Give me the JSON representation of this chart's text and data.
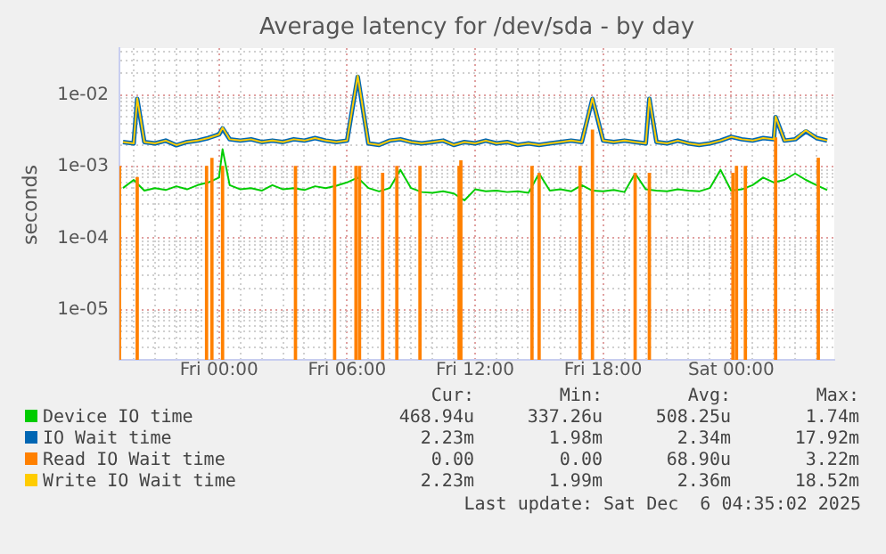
{
  "chart_data": {
    "type": "line",
    "title": "Average latency for /dev/sda - by day",
    "ylabel": "seconds",
    "log": "y",
    "grid": true,
    "legend": "bottom",
    "marker": "none",
    "line_style": "solid",
    "xlim": [
      "2025-12-04T19:20",
      "2025-12-06T04:50"
    ],
    "xticks": [
      {
        "value": "2025-12-04T20:00",
        "label": null
      },
      {
        "value": "2025-12-04T21:00",
        "label": null
      },
      {
        "value": "2025-12-04T22:00",
        "label": null
      },
      {
        "value": "2025-12-04T23:00",
        "label": null
      },
      {
        "value": "2025-12-05T00:00",
        "label": "Fri 00:00"
      },
      {
        "value": "2025-12-05T01:00",
        "label": null
      },
      {
        "value": "2025-12-05T02:00",
        "label": null
      },
      {
        "value": "2025-12-05T03:00",
        "label": null
      },
      {
        "value": "2025-12-05T04:00",
        "label": null
      },
      {
        "value": "2025-12-05T05:00",
        "label": null
      },
      {
        "value": "2025-12-05T06:00",
        "label": "Fri 06:00"
      },
      {
        "value": "2025-12-05T07:00",
        "label": null
      },
      {
        "value": "2025-12-05T08:00",
        "label": null
      },
      {
        "value": "2025-12-05T09:00",
        "label": null
      },
      {
        "value": "2025-12-05T10:00",
        "label": null
      },
      {
        "value": "2025-12-05T11:00",
        "label": null
      },
      {
        "value": "2025-12-05T12:00",
        "label": "Fri 12:00"
      },
      {
        "value": "2025-12-05T13:00",
        "label": null
      },
      {
        "value": "2025-12-05T14:00",
        "label": null
      },
      {
        "value": "2025-12-05T15:00",
        "label": null
      },
      {
        "value": "2025-12-05T16:00",
        "label": null
      },
      {
        "value": "2025-12-05T17:00",
        "label": null
      },
      {
        "value": "2025-12-05T18:00",
        "label": "Fri 18:00"
      },
      {
        "value": "2025-12-05T19:00",
        "label": null
      },
      {
        "value": "2025-12-05T20:00",
        "label": null
      },
      {
        "value": "2025-12-05T21:00",
        "label": null
      },
      {
        "value": "2025-12-05T22:00",
        "label": null
      },
      {
        "value": "2025-12-05T23:00",
        "label": null
      },
      {
        "value": "2025-12-06T00:00",
        "label": "Sat 00:00"
      },
      {
        "value": "2025-12-06T01:00",
        "label": null
      },
      {
        "value": "2025-12-06T02:00",
        "label": null
      },
      {
        "value": "2025-12-06T03:00",
        "label": null
      },
      {
        "value": "2025-12-06T04:00",
        "label": null
      }
    ],
    "ylim": [
      2e-06,
      0.045
    ],
    "yticks": [
      {
        "value": 3e-06,
        "label": null
      },
      {
        "value": 4e-06,
        "label": null
      },
      {
        "value": 5e-06,
        "label": null
      },
      {
        "value": 6e-06,
        "label": null
      },
      {
        "value": 7e-06,
        "label": null
      },
      {
        "value": 8e-06,
        "label": null
      },
      {
        "value": 9e-06,
        "label": null
      },
      {
        "value": 1e-05,
        "label": "1e-05"
      },
      {
        "value": 2e-05,
        "label": null
      },
      {
        "value": 3e-05,
        "label": null
      },
      {
        "value": 4e-05,
        "label": null
      },
      {
        "value": 5e-05,
        "label": null
      },
      {
        "value": 6e-05,
        "label": null
      },
      {
        "value": 7e-05,
        "label": null
      },
      {
        "value": 8e-05,
        "label": null
      },
      {
        "value": 9e-05,
        "label": null
      },
      {
        "value": 0.0001,
        "label": "1e-04"
      },
      {
        "value": 0.0002,
        "label": null
      },
      {
        "value": 0.0003,
        "label": null
      },
      {
        "value": 0.0004,
        "label": null
      },
      {
        "value": 0.0005,
        "label": null
      },
      {
        "value": 0.0006,
        "label": null
      },
      {
        "value": 0.0007,
        "label": null
      },
      {
        "value": 0.0008,
        "label": null
      },
      {
        "value": 0.0009,
        "label": null
      },
      {
        "value": 0.001,
        "label": "1e-03"
      },
      {
        "value": 0.002,
        "label": null
      },
      {
        "value": 0.003,
        "label": null
      },
      {
        "value": 0.004,
        "label": null
      },
      {
        "value": 0.005,
        "label": null
      },
      {
        "value": 0.006,
        "label": null
      },
      {
        "value": 0.007,
        "label": null
      },
      {
        "value": 0.008,
        "label": null
      },
      {
        "value": 0.009,
        "label": null
      },
      {
        "value": 0.01,
        "label": "1e-02"
      },
      {
        "value": 0.02,
        "label": null
      },
      {
        "value": 0.03,
        "label": null
      },
      {
        "value": 0.04,
        "label": null
      }
    ],
    "series": [
      {
        "name": "Device IO time",
        "color": "#00cc00",
        "x": [
          "2025-12-04T19:30",
          "2025-12-04T20:00",
          "2025-12-04T20:30",
          "2025-12-04T21:00",
          "2025-12-04T21:30",
          "2025-12-04T22:00",
          "2025-12-04T22:30",
          "2025-12-04T23:00",
          "2025-12-04T23:30",
          "2025-12-05T00:00",
          "2025-12-05T00:10",
          "2025-12-05T00:30",
          "2025-12-05T01:00",
          "2025-12-05T01:30",
          "2025-12-05T02:00",
          "2025-12-05T02:30",
          "2025-12-05T03:00",
          "2025-12-05T03:30",
          "2025-12-05T04:00",
          "2025-12-05T04:30",
          "2025-12-05T05:00",
          "2025-12-05T05:30",
          "2025-12-05T06:00",
          "2025-12-05T06:30",
          "2025-12-05T07:00",
          "2025-12-05T07:30",
          "2025-12-05T08:00",
          "2025-12-05T08:30",
          "2025-12-05T09:00",
          "2025-12-05T09:30",
          "2025-12-05T10:00",
          "2025-12-05T10:30",
          "2025-12-05T11:00",
          "2025-12-05T11:30",
          "2025-12-05T12:00",
          "2025-12-05T12:30",
          "2025-12-05T13:00",
          "2025-12-05T13:30",
          "2025-12-05T14:00",
          "2025-12-05T14:30",
          "2025-12-05T15:00",
          "2025-12-05T15:30",
          "2025-12-05T16:00",
          "2025-12-05T16:30",
          "2025-12-05T17:00",
          "2025-12-05T17:30",
          "2025-12-05T18:00",
          "2025-12-05T18:30",
          "2025-12-05T19:00",
          "2025-12-05T19:30",
          "2025-12-05T20:00",
          "2025-12-05T20:30",
          "2025-12-05T21:00",
          "2025-12-05T21:30",
          "2025-12-05T22:00",
          "2025-12-05T22:30",
          "2025-12-05T23:00",
          "2025-12-05T23:30",
          "2025-12-06T00:00",
          "2025-12-06T00:30",
          "2025-12-06T01:00",
          "2025-12-06T01:30",
          "2025-12-06T02:00",
          "2025-12-06T02:30",
          "2025-12-06T03:00",
          "2025-12-06T03:30",
          "2025-12-06T04:00",
          "2025-12-06T04:30"
        ],
        "values": [
          0.0005,
          0.00065,
          0.00046,
          0.0005,
          0.00047,
          0.00053,
          0.00048,
          0.00055,
          0.0006,
          0.0007,
          0.00174,
          0.00055,
          0.00048,
          0.0005,
          0.00046,
          0.00055,
          0.00048,
          0.0005,
          0.00047,
          0.00053,
          0.0005,
          0.00054,
          0.0006,
          0.0007,
          0.0005,
          0.00045,
          0.0005,
          0.0009,
          0.0005,
          0.00044,
          0.00043,
          0.00045,
          0.00042,
          0.000337,
          0.00048,
          0.00045,
          0.00046,
          0.00044,
          0.00045,
          0.00043,
          0.0008,
          0.00046,
          0.00048,
          0.00045,
          0.00055,
          0.00046,
          0.00045,
          0.00047,
          0.00044,
          0.0008,
          0.00048,
          0.00046,
          0.00045,
          0.00048,
          0.00046,
          0.00045,
          0.0005,
          0.0009,
          0.00046,
          0.00048,
          0.00055,
          0.0007,
          0.0006,
          0.00065,
          0.0008,
          0.00065,
          0.00055,
          0.00047
        ]
      },
      {
        "name": "IO Wait time",
        "color": "#0066b3",
        "x": [
          "2025-12-04T19:30",
          "2025-12-04T20:00",
          "2025-12-04T20:10",
          "2025-12-04T20:30",
          "2025-12-04T21:00",
          "2025-12-04T21:30",
          "2025-12-04T22:00",
          "2025-12-04T22:30",
          "2025-12-04T23:00",
          "2025-12-04T23:30",
          "2025-12-05T00:00",
          "2025-12-05T00:10",
          "2025-12-05T00:30",
          "2025-12-05T01:00",
          "2025-12-05T01:30",
          "2025-12-05T02:00",
          "2025-12-05T02:30",
          "2025-12-05T03:00",
          "2025-12-05T03:30",
          "2025-12-05T04:00",
          "2025-12-05T04:30",
          "2025-12-05T05:00",
          "2025-12-05T05:30",
          "2025-12-05T06:00",
          "2025-12-05T06:30",
          "2025-12-05T07:00",
          "2025-12-05T07:30",
          "2025-12-05T08:00",
          "2025-12-05T08:30",
          "2025-12-05T09:00",
          "2025-12-05T09:30",
          "2025-12-05T10:00",
          "2025-12-05T10:30",
          "2025-12-05T11:00",
          "2025-12-05T11:30",
          "2025-12-05T12:00",
          "2025-12-05T12:30",
          "2025-12-05T13:00",
          "2025-12-05T13:30",
          "2025-12-05T14:00",
          "2025-12-05T14:30",
          "2025-12-05T15:00",
          "2025-12-05T15:30",
          "2025-12-05T16:00",
          "2025-12-05T16:30",
          "2025-12-05T17:00",
          "2025-12-05T17:30",
          "2025-12-05T18:00",
          "2025-12-05T18:30",
          "2025-12-05T19:00",
          "2025-12-05T19:30",
          "2025-12-05T20:00",
          "2025-12-05T20:10",
          "2025-12-05T20:30",
          "2025-12-05T21:00",
          "2025-12-05T21:30",
          "2025-12-05T22:00",
          "2025-12-05T22:30",
          "2025-12-05T23:00",
          "2025-12-05T23:30",
          "2025-12-06T00:00",
          "2025-12-06T00:30",
          "2025-12-06T01:00",
          "2025-12-06T01:30",
          "2025-12-06T02:00",
          "2025-12-06T02:05",
          "2025-12-06T02:30",
          "2025-12-06T03:00",
          "2025-12-06T03:30",
          "2025-12-06T04:00",
          "2025-12-06T04:30"
        ],
        "values": [
          0.0022,
          0.0021,
          0.0088,
          0.0022,
          0.0021,
          0.0023,
          0.00198,
          0.0022,
          0.0023,
          0.0025,
          0.0028,
          0.0034,
          0.0024,
          0.0023,
          0.0024,
          0.0022,
          0.0023,
          0.0022,
          0.0024,
          0.0023,
          0.0025,
          0.0023,
          0.0022,
          0.0023,
          0.01792,
          0.0021,
          0.002,
          0.0023,
          0.0024,
          0.0022,
          0.0021,
          0.0022,
          0.0023,
          0.002,
          0.0022,
          0.0021,
          0.0023,
          0.0021,
          0.0022,
          0.002,
          0.0021,
          0.002,
          0.0021,
          0.0022,
          0.0023,
          0.0022,
          0.0088,
          0.0023,
          0.0022,
          0.0023,
          0.0022,
          0.0021,
          0.0088,
          0.0022,
          0.0021,
          0.0023,
          0.0021,
          0.002,
          0.0021,
          0.0023,
          0.0026,
          0.0024,
          0.0023,
          0.0025,
          0.0024,
          0.0049,
          0.0023,
          0.0024,
          0.0031,
          0.0025,
          0.0023
        ]
      },
      {
        "name": "Read IO Wait time",
        "color": "#ff8000",
        "type": "bar",
        "x": [
          "2025-12-04T19:20",
          "2025-12-04T20:10",
          "2025-12-04T23:25",
          "2025-12-04T23:40",
          "2025-12-05T00:10",
          "2025-12-05T03:35",
          "2025-12-05T05:25",
          "2025-12-05T06:25",
          "2025-12-05T06:35",
          "2025-12-05T07:40",
          "2025-12-05T08:20",
          "2025-12-05T09:25",
          "2025-12-05T11:15",
          "2025-12-05T11:20",
          "2025-12-05T14:40",
          "2025-12-05T15:00",
          "2025-12-05T16:55",
          "2025-12-05T17:30",
          "2025-12-05T19:30",
          "2025-12-05T20:10",
          "2025-12-06T00:05",
          "2025-12-06T00:15",
          "2025-12-06T00:40",
          "2025-12-06T02:05",
          "2025-12-06T04:05"
        ],
        "values": [
          0.001,
          0.0007,
          0.001,
          0.0013,
          0.001,
          0.001,
          0.001,
          0.001,
          0.001,
          0.0008,
          0.001,
          0.001,
          0.001,
          0.0012,
          0.001,
          0.0008,
          0.001,
          0.00322,
          0.0008,
          0.0008,
          0.0008,
          0.001,
          0.001,
          0.0025,
          0.0013
        ]
      },
      {
        "name": "Write IO Wait time",
        "color": "#ffcc00",
        "x": [
          "2025-12-04T19:30",
          "2025-12-04T20:00",
          "2025-12-04T20:10",
          "2025-12-04T20:30",
          "2025-12-04T21:00",
          "2025-12-04T21:30",
          "2025-12-04T22:00",
          "2025-12-04T22:30",
          "2025-12-04T23:00",
          "2025-12-04T23:30",
          "2025-12-05T00:00",
          "2025-12-05T00:10",
          "2025-12-05T00:30",
          "2025-12-05T01:00",
          "2025-12-05T01:30",
          "2025-12-05T02:00",
          "2025-12-05T02:30",
          "2025-12-05T03:00",
          "2025-12-05T03:30",
          "2025-12-05T04:00",
          "2025-12-05T04:30",
          "2025-12-05T05:00",
          "2025-12-05T05:30",
          "2025-12-05T06:00",
          "2025-12-05T06:30",
          "2025-12-05T07:00",
          "2025-12-05T07:30",
          "2025-12-05T08:00",
          "2025-12-05T08:30",
          "2025-12-05T09:00",
          "2025-12-05T09:30",
          "2025-12-05T10:00",
          "2025-12-05T10:30",
          "2025-12-05T11:00",
          "2025-12-05T11:30",
          "2025-12-05T12:00",
          "2025-12-05T12:30",
          "2025-12-05T13:00",
          "2025-12-05T13:30",
          "2025-12-05T14:00",
          "2025-12-05T14:30",
          "2025-12-05T15:00",
          "2025-12-05T15:30",
          "2025-12-05T16:00",
          "2025-12-05T16:30",
          "2025-12-05T17:00",
          "2025-12-05T17:30",
          "2025-12-05T18:00",
          "2025-12-05T18:30",
          "2025-12-05T19:00",
          "2025-12-05T19:30",
          "2025-12-05T20:00",
          "2025-12-05T20:10",
          "2025-12-05T20:30",
          "2025-12-05T21:00",
          "2025-12-05T21:30",
          "2025-12-05T22:00",
          "2025-12-05T22:30",
          "2025-12-05T23:00",
          "2025-12-05T23:30",
          "2025-12-06T00:00",
          "2025-12-06T00:30",
          "2025-12-06T01:00",
          "2025-12-06T01:30",
          "2025-12-06T02:00",
          "2025-12-06T02:05",
          "2025-12-06T02:30",
          "2025-12-06T03:00",
          "2025-12-06T03:30",
          "2025-12-06T04:00",
          "2025-12-06T04:30"
        ],
        "values": [
          0.0022,
          0.0021,
          0.009,
          0.0022,
          0.0021,
          0.0023,
          0.00199,
          0.0022,
          0.0023,
          0.0025,
          0.0028,
          0.0035,
          0.0024,
          0.0023,
          0.0024,
          0.0022,
          0.0023,
          0.0022,
          0.0024,
          0.0023,
          0.0025,
          0.0023,
          0.0022,
          0.0023,
          0.01852,
          0.0021,
          0.002,
          0.0023,
          0.0024,
          0.0022,
          0.0021,
          0.0022,
          0.0023,
          0.002,
          0.0022,
          0.0021,
          0.0023,
          0.0021,
          0.0022,
          0.002,
          0.0021,
          0.002,
          0.0021,
          0.0022,
          0.0023,
          0.0022,
          0.009,
          0.0023,
          0.0022,
          0.0023,
          0.0022,
          0.0021,
          0.009,
          0.0022,
          0.0021,
          0.0023,
          0.0021,
          0.002,
          0.0021,
          0.0023,
          0.0026,
          0.0024,
          0.0023,
          0.0025,
          0.0024,
          0.005,
          0.0023,
          0.0024,
          0.0032,
          0.0025,
          0.0023
        ]
      }
    ],
    "annotations": [
      "Cur:",
      "Min:",
      "Avg:",
      "Max:",
      "468.94u",
      "337.26u",
      "508.25u",
      "1.74m",
      "2.23m",
      "1.98m",
      "2.34m",
      "17.92m",
      "0.00",
      "0.00",
      "68.90u",
      "3.22m",
      "2.23m",
      "1.99m",
      "2.36m",
      "18.52m",
      "Last update: Sat Dec  6 04:35:02 2025"
    ]
  }
}
